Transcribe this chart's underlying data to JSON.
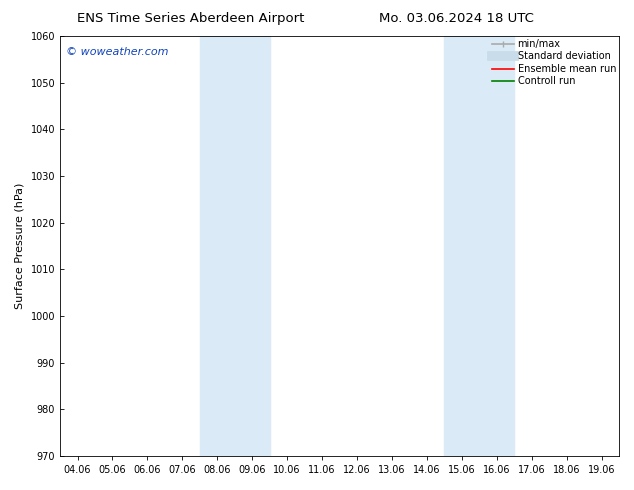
{
  "title_left": "ENS Time Series Aberdeen Airport",
  "title_right": "Mo. 03.06.2024 18 UTC",
  "ylabel": "Surface Pressure (hPa)",
  "ylim": [
    970,
    1060
  ],
  "yticks": [
    970,
    980,
    990,
    1000,
    1010,
    1020,
    1030,
    1040,
    1050,
    1060
  ],
  "xtick_labels": [
    "04.06",
    "05.06",
    "06.06",
    "07.06",
    "08.06",
    "09.06",
    "10.06",
    "11.06",
    "12.06",
    "13.06",
    "14.06",
    "15.06",
    "16.06",
    "17.06",
    "18.06",
    "19.06"
  ],
  "xtick_positions": [
    0,
    1,
    2,
    3,
    4,
    5,
    6,
    7,
    8,
    9,
    10,
    11,
    12,
    13,
    14,
    15
  ],
  "shaded_regions": [
    {
      "xstart": 4.0,
      "xend": 6.0,
      "color": "#daeaf7"
    },
    {
      "xstart": 11.0,
      "xend": 13.0,
      "color": "#daeaf7"
    }
  ],
  "watermark": "© woweather.com",
  "watermark_color": "#1144bb",
  "background_color": "#ffffff",
  "legend_items": [
    {
      "label": "min/max",
      "color": "#aaaaaa"
    },
    {
      "label": "Standard deviation",
      "color": "#c8dcea"
    },
    {
      "label": "Ensemble mean run",
      "color": "red"
    },
    {
      "label": "Controll run",
      "color": "green"
    }
  ],
  "title_fontsize": 9.5,
  "tick_fontsize": 7,
  "ylabel_fontsize": 8,
  "legend_fontsize": 7,
  "watermark_fontsize": 8
}
